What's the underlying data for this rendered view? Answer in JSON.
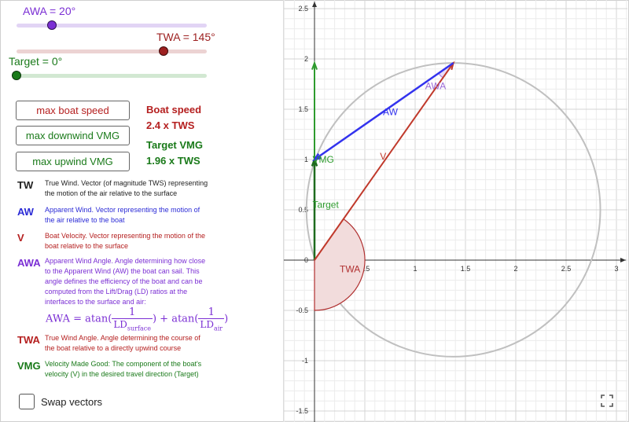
{
  "sliders": {
    "awa": {
      "label": "AWA = 20°",
      "value_deg": 20,
      "color": "#7b2fd4",
      "track": "#e2d4f5"
    },
    "twa": {
      "label": "TWA = 145°",
      "value_deg": 145,
      "color": "#9d2020",
      "track": "#ecd3d3"
    },
    "target": {
      "label": "Target = 0°",
      "value_deg": 0,
      "color": "#1a7a1a",
      "track": "#d2e8d2"
    }
  },
  "buttons": {
    "max_boat_speed": "max boat speed",
    "max_downwind_vmg": "max downwind VMG",
    "max_upwind_vmg": "max upwind VMG"
  },
  "readouts": {
    "boat_speed_title": "Boat speed",
    "boat_speed_value": "2.4 x TWS",
    "target_vmg_title": "Target VMG",
    "target_vmg_value": "1.96 x TWS"
  },
  "definitions": {
    "tw": {
      "abbr": "TW",
      "text": "True Wind. Vector (of magnitude TWS) representing the motion of the air relative to the surface",
      "color": "#222222"
    },
    "aw": {
      "abbr": "AW",
      "text": "Apparent Wind. Vector representing the motion of the air relative to the boat",
      "color": "#2b2bd6"
    },
    "v": {
      "abbr": "V",
      "text": "Boat Velocity. Vector representing the motion of the boat relative to the surface",
      "color": "#b52020"
    },
    "awa": {
      "abbr": "AWA",
      "text": "Apparent Wind Angle. Angle determining how close to the Apparent Wind (AW) the boat can sail. This angle defines the efficiency of the boat and can be computed from the Lift/Drag (LD) ratios at the interfaces to the surface and air:",
      "color": "#7b2fd4"
    },
    "twa": {
      "abbr": "TWA",
      "text": "True Wind Angle. Angle determining the course of the boat relative to a directly upwind course",
      "color": "#b52020"
    },
    "vmg": {
      "abbr": "VMG",
      "text": "Velocity Made Good: The component of the boat's velocity (V) in the desired travel direction (Target)",
      "color": "#1a7a1a"
    }
  },
  "formula": {
    "lhs": "AWA = ",
    "atan": "atan",
    "plus": " + ",
    "one": "1",
    "ld": "LD",
    "surface": "surface",
    "air": "air"
  },
  "checkbox": {
    "label": "Swap vectors",
    "checked": false
  },
  "graph": {
    "x_ticks": [
      "0.5",
      "1",
      "1.5",
      "2",
      "2.5",
      "3"
    ],
    "y_ticks": [
      "2.5",
      "2",
      "1.5",
      "1",
      "0.5",
      "0",
      "-0.5",
      "-1",
      "-1.5"
    ],
    "x_ticks_values": [
      0.5,
      1,
      1.5,
      2,
      2.5,
      3
    ],
    "y_ticks_values": [
      2.5,
      2,
      1.5,
      1,
      0.5,
      0,
      -0.5,
      -1,
      -1.5
    ],
    "labels": {
      "awa": "AWA",
      "aw": "AW",
      "v": "V",
      "vmg": "VMG",
      "target": "Target",
      "twa": "TWA"
    },
    "vectors": {
      "v": {
        "from": [
          0,
          0
        ],
        "to": [
          1.38,
          1.96
        ]
      },
      "aw": {
        "from": [
          1.38,
          1.96
        ],
        "to": [
          0,
          1
        ]
      },
      "target": {
        "from": [
          0,
          0
        ],
        "to": [
          0,
          1
        ]
      },
      "vmg": {
        "from": [
          0,
          0
        ],
        "to": [
          0,
          1.96
        ]
      }
    },
    "circle": {
      "center": [
        1.38,
        0.5
      ],
      "radius": 1.46
    },
    "colors": {
      "v": "#c0392b",
      "aw": "#3333ee",
      "vmg": "#2e9b2e",
      "circle": "#c0c0c0",
      "grid_minor": "#ececec",
      "grid_major": "#d4d4d4",
      "twa_fill": "#f2dcdc",
      "awa_fill": "#e8dcf8"
    }
  }
}
